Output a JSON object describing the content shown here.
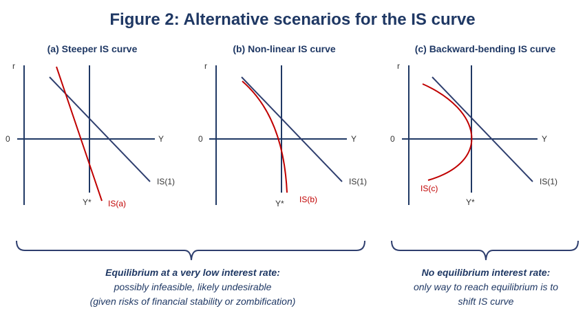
{
  "title": "Figure 2: Alternative scenarios for the IS curve",
  "panels": [
    {
      "subtitle": "(a) Steeper IS curve",
      "y_axis_label": "r",
      "origin_label": "0",
      "x_axis_label": "Y",
      "y_star_label": "Y*",
      "is1_label": "IS(1)",
      "alt_curve_label": "IS(a)"
    },
    {
      "subtitle": "(b) Non-linear IS curve",
      "y_axis_label": "r",
      "origin_label": "0",
      "x_axis_label": "Y",
      "y_star_label": "Y*",
      "is1_label": "IS(1)",
      "alt_curve_label": "IS(b)"
    },
    {
      "subtitle": "(c) Backward-bending IS curve",
      "y_axis_label": "r",
      "origin_label": "0",
      "x_axis_label": "Y",
      "y_star_label": "Y*",
      "is1_label": "IS(1)",
      "alt_curve_label": "IS(c)"
    }
  ],
  "captions": {
    "left": {
      "heading": "Equilibrium at a very low interest rate:",
      "line1": "possibly infeasible, likely undesirable",
      "line2": "(given risks of financial stability or zombification)"
    },
    "right": {
      "heading": "No equilibrium interest rate:",
      "line1": "only way to reach equilibrium is to",
      "line2": "shift IS curve"
    }
  },
  "colors": {
    "axes": "#1f3864",
    "is1_line": "#2e3e6e",
    "alt_curve": "#c00000",
    "text": "#1f3864"
  }
}
